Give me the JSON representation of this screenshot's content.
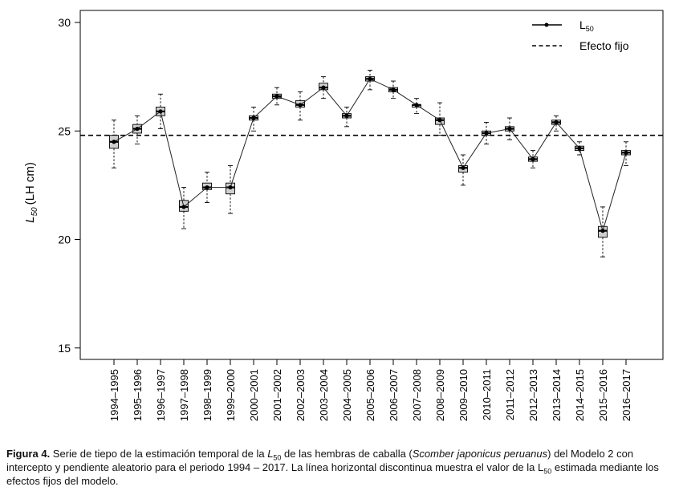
{
  "chart_data": {
    "type": "line",
    "ylabel_symbol": "L",
    "ylabel_subscript": "50",
    "ylabel_unit": "(LH cm)",
    "ylim": [
      15,
      30
    ],
    "yticks": [
      15,
      20,
      25,
      30
    ],
    "grid": false,
    "legend_position": "top-right",
    "legend": [
      {
        "symbol_text": "L",
        "subscript": "50",
        "style": "line-point"
      },
      {
        "label": "Efecto fijo",
        "style": "dashed"
      }
    ],
    "fixed_effect": 24.8,
    "categories": [
      "1994–1995",
      "1995–1996",
      "1996–1997",
      "1997–1998",
      "1998–1999",
      "1999–2000",
      "2000–2001",
      "2001–2002",
      "2002–2003",
      "2003–2004",
      "2004–2005",
      "2005–2006",
      "2006–2007",
      "2007–2008",
      "2008–2009",
      "2009–2010",
      "2010–2011",
      "2011–2012",
      "2012–2013",
      "2013–2014",
      "2014–2015",
      "2015–2016",
      "2016–2017"
    ],
    "series": [
      {
        "values": [
          24.5,
          25.1,
          25.9,
          21.5,
          22.4,
          22.4,
          25.6,
          26.6,
          26.2,
          27.0,
          25.7,
          27.4,
          26.9,
          26.2,
          25.5,
          23.3,
          24.9,
          25.1,
          23.7,
          25.4,
          24.2,
          20.4,
          24.0
        ],
        "q1": [
          24.2,
          24.9,
          25.7,
          21.3,
          22.3,
          22.1,
          25.5,
          26.5,
          26.1,
          26.9,
          25.6,
          27.3,
          26.8,
          26.1,
          25.3,
          23.1,
          24.8,
          25.0,
          23.6,
          25.3,
          24.1,
          20.1,
          23.9
        ],
        "q3": [
          24.8,
          25.3,
          26.1,
          21.8,
          22.6,
          22.6,
          25.7,
          26.7,
          26.4,
          27.2,
          25.8,
          27.5,
          27.0,
          26.2,
          25.6,
          23.4,
          25.0,
          25.2,
          23.8,
          25.5,
          24.3,
          20.6,
          24.1
        ],
        "whisker_low": [
          23.3,
          24.4,
          25.1,
          20.5,
          21.7,
          21.2,
          25.0,
          26.2,
          25.5,
          26.5,
          25.2,
          26.9,
          26.5,
          25.8,
          24.8,
          22.5,
          24.4,
          24.6,
          23.3,
          25.0,
          23.9,
          19.2,
          23.4
        ],
        "whisker_high": [
          25.5,
          25.7,
          26.7,
          22.4,
          23.1,
          23.4,
          26.1,
          27.0,
          26.8,
          27.5,
          26.1,
          27.8,
          27.3,
          26.5,
          26.3,
          23.9,
          25.4,
          25.6,
          24.1,
          25.7,
          24.5,
          21.5,
          24.5
        ]
      }
    ]
  },
  "caption": {
    "label": "Figura 4.",
    "part1": " Serie de tiepo de la estimación temporal de la ",
    "sym": "L",
    "sub": "50",
    "part2": " de las hembras de caballa (",
    "species": "Scomber japonicus peruanus",
    "part3": ") del Modelo 2 con intercepto y pendiente aleatorio para el periodo 1994 – 2017. La línea horizontal discontinua muestra el valor de la L",
    "sub2": "50",
    "part4": " estimada mediante los efectos fijos del modelo."
  }
}
